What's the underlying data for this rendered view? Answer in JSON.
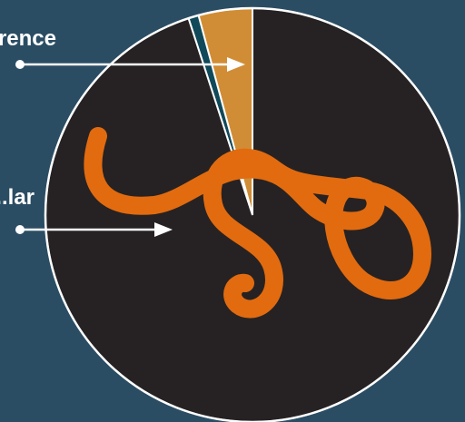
{
  "chart_data": {
    "type": "pie",
    "title": "",
    "slices": [
      {
        "label": "...rence",
        "value": 4.2,
        "color": "#d18d35"
      },
      {
        "label": "",
        "value": 0.8,
        "color": "#10495a"
      },
      {
        "label": "...lar",
        "value": 95.0,
        "color": "#262223"
      }
    ],
    "start_angle_deg": 0,
    "direction": "counterclockwise",
    "legend": "callout-left",
    "colors": {
      "background": "#2b4d64",
      "outline": "#ffffff",
      "decoration": "#e26b0f"
    }
  }
}
